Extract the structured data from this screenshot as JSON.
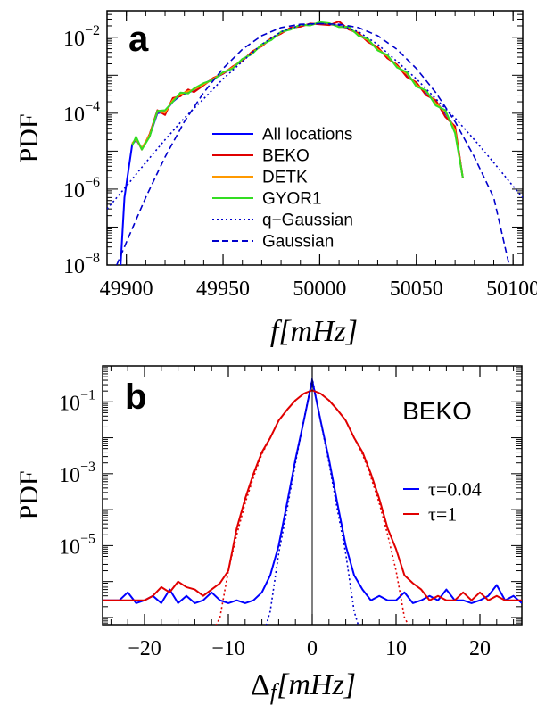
{
  "chart_data": [
    {
      "panel": "a",
      "type": "line",
      "xlabel_main": "f",
      "xlabel_unit": "[mHz]",
      "ylabel": "PDF",
      "xlim": [
        49890,
        50105
      ],
      "ylim_log10": [
        -8,
        -1.3
      ],
      "y_scale": "log",
      "grid": false,
      "legend_position": "center-right",
      "x_ticks": [
        49900,
        49950,
        50000,
        50050,
        50100
      ],
      "x_tick_labels": [
        "49900",
        "49950",
        "50000",
        "50050",
        "50100"
      ],
      "y_ticks_log10": [
        -8,
        -6,
        -4,
        -2
      ],
      "y_tick_bases": [
        "10",
        "10",
        "10",
        "10"
      ],
      "y_tick_exps": [
        "−8",
        "−6",
        "−4",
        "−2"
      ],
      "series": [
        {
          "name": "All locations",
          "color": "#0000ff",
          "dash": "solid",
          "x": [
            49897,
            49899,
            49903,
            49905,
            49908,
            49912,
            49916,
            49920,
            49924,
            49928,
            49932,
            49935,
            49940,
            49945,
            49950,
            49955,
            49960,
            49965,
            49970,
            49975,
            49980,
            49985,
            49990,
            49995,
            50000,
            50005,
            50010,
            50015,
            50020,
            50025,
            50030,
            50035,
            50040,
            50045,
            50050,
            50055,
            50060,
            50065,
            50070,
            50074
          ],
          "y": [
            1e-08,
            6e-07,
            1.5e-05,
            2e-05,
            1.2e-05,
            2.5e-05,
            0.0001,
            0.00011,
            0.0002,
            0.0003,
            0.00035,
            0.0004,
            0.0006,
            0.0008,
            0.0011,
            0.0016,
            0.0025,
            0.004,
            0.006,
            0.009,
            0.013,
            0.017,
            0.02,
            0.022,
            0.023,
            0.022,
            0.02,
            0.017,
            0.012,
            0.008,
            0.005,
            0.003,
            0.0018,
            0.001,
            0.0006,
            0.00035,
            0.0002,
            0.0001,
            4e-05,
            2e-06
          ]
        },
        {
          "name": "BEKO",
          "color": "#e00000",
          "dash": "solid",
          "x": [
            49903,
            49905,
            49908,
            49912,
            49916,
            49920,
            49924,
            49928,
            49932,
            49935,
            49940,
            49945,
            49950,
            49955,
            49960,
            49965,
            49970,
            49975,
            49980,
            49985,
            49990,
            49995,
            50000,
            50005,
            50010,
            50015,
            50020,
            50025,
            50030,
            50035,
            50040,
            50045,
            50050,
            50055,
            50060,
            50065,
            50070,
            50074
          ],
          "y": [
            1.5e-05,
            2.2e-05,
            1.1e-05,
            2.8e-05,
            0.00012,
            9e-05,
            0.00025,
            0.00028,
            0.00042,
            0.00036,
            0.00055,
            0.00085,
            0.0011,
            0.0017,
            0.0024,
            0.0042,
            0.0058,
            0.0095,
            0.0125,
            0.018,
            0.019,
            0.023,
            0.022,
            0.021,
            0.026,
            0.016,
            0.013,
            0.0075,
            0.0055,
            0.0028,
            0.0019,
            0.0009,
            0.00065,
            0.0003,
            0.00022,
            8e-05,
            4.5e-05,
            2e-06
          ]
        },
        {
          "name": "DETK",
          "color": "#ff9900",
          "dash": "solid",
          "x": [
            49903,
            49905,
            49908,
            49912,
            49916,
            49920,
            49924,
            49928,
            49932,
            49935,
            49940,
            49945,
            49950,
            49955,
            49960,
            49965,
            49970,
            49975,
            49980,
            49985,
            49990,
            49995,
            50000,
            50005,
            50010,
            50015,
            50020,
            50025,
            50030,
            50035,
            50040,
            50045,
            50050,
            50055,
            50060,
            50065,
            50070,
            50074
          ],
          "y": [
            1.6e-05,
            2.1e-05,
            1.2e-05,
            2.6e-05,
            0.00011,
            0.000105,
            0.00022,
            0.00032,
            0.00038,
            0.00042,
            0.00058,
            0.0008,
            0.00115,
            0.0016,
            0.0026,
            0.0038,
            0.0062,
            0.0088,
            0.0135,
            0.0165,
            0.021,
            0.021,
            0.024,
            0.023,
            0.019,
            0.018,
            0.0115,
            0.0085,
            0.0048,
            0.0032,
            0.0017,
            0.0011,
            0.00055,
            0.00038,
            0.00018,
            0.00011,
            3.5e-05,
            2e-06
          ]
        },
        {
          "name": "GYOR1",
          "color": "#33dd22",
          "dash": "solid",
          "x": [
            49903,
            49905,
            49908,
            49912,
            49916,
            49920,
            49924,
            49928,
            49932,
            49935,
            49940,
            49945,
            49950,
            49955,
            49960,
            49965,
            49970,
            49975,
            49980,
            49985,
            49990,
            49995,
            50000,
            50005,
            50010,
            50015,
            50020,
            50025,
            50030,
            50035,
            50040,
            50045,
            50050,
            50055,
            50060,
            50065,
            50070,
            50074
          ],
          "y": [
            1.4e-05,
            2.4e-05,
            1.1e-05,
            2.4e-05,
            0.000115,
            0.00012,
            0.0002,
            0.00035,
            0.00033,
            0.00045,
            0.00062,
            0.00075,
            0.0012,
            0.0015,
            0.0027,
            0.0036,
            0.0065,
            0.0085,
            0.014,
            0.016,
            0.0215,
            0.0205,
            0.025,
            0.0235,
            0.0185,
            0.019,
            0.011,
            0.009,
            0.0045,
            0.0034,
            0.0016,
            0.0012,
            0.0005,
            0.0004,
            0.00016,
            0.00012,
            3e-05,
            2e-06
          ]
        },
        {
          "name": "q−Gaussian",
          "color": "#0000cc",
          "dash": "dotted",
          "x": [
            49890,
            49900,
            49910,
            49920,
            49930,
            49940,
            49950,
            49960,
            49970,
            49980,
            49990,
            50000,
            50010,
            50020,
            50030,
            50040,
            50050,
            50060,
            50070,
            50080,
            50090,
            50100,
            50105
          ],
          "y": [
            3e-07,
            1.2e-06,
            5e-06,
            2e-05,
            7.5e-05,
            0.00024,
            0.0008,
            0.0023,
            0.0065,
            0.014,
            0.021,
            0.023,
            0.021,
            0.014,
            0.0065,
            0.0023,
            0.0008,
            0.00024,
            7.5e-05,
            2e-05,
            5e-06,
            1.2e-06,
            6e-07
          ]
        },
        {
          "name": "Gaussian",
          "color": "#0000cc",
          "dash": "dashed",
          "x": [
            49895,
            49900,
            49910,
            49920,
            49930,
            49940,
            49950,
            49960,
            49970,
            49980,
            49990,
            50000,
            50010,
            50020,
            50030,
            50040,
            50050,
            50060,
            50070,
            50080,
            50090,
            50098
          ],
          "y": [
            1e-08,
            4e-08,
            6e-07,
            7e-06,
            6e-05,
            0.00035,
            0.0015,
            0.0048,
            0.011,
            0.018,
            0.022,
            0.023,
            0.022,
            0.018,
            0.011,
            0.0048,
            0.0015,
            0.00035,
            6e-05,
            7e-06,
            6e-07,
            1e-08
          ]
        }
      ]
    },
    {
      "panel": "b",
      "type": "line",
      "xlabel_main": "Δ",
      "xlabel_sub": "f",
      "xlabel_unit": "[mHz]",
      "ylabel": "PDF",
      "xlim": [
        -25,
        25
      ],
      "ylim_log10": [
        -7.2,
        0
      ],
      "y_scale": "log",
      "grid": false,
      "annotation": "BEKO",
      "legend_position": "right",
      "x_ticks": [
        -20,
        -10,
        0,
        10,
        20
      ],
      "x_tick_labels": [
        "−20",
        "−10",
        "0",
        "10",
        "20"
      ],
      "y_ticks_log10": [
        -5,
        -3,
        -1
      ],
      "y_tick_bases": [
        "10",
        "10",
        "10"
      ],
      "y_tick_exps": [
        "−5",
        "−3",
        "−1"
      ],
      "series": [
        {
          "name": "τ=0.04",
          "color": "#0000ff",
          "dash": "solid",
          "x": [
            -25,
            -23,
            -22,
            -21,
            -20,
            -19,
            -18,
            -17,
            -16,
            -15,
            -14,
            -13,
            -12,
            -11,
            -10,
            -9,
            -8,
            -7,
            -6,
            -5,
            -4,
            -3,
            -2,
            -1,
            0,
            1,
            2,
            3,
            4,
            5,
            6,
            7,
            8,
            9,
            10,
            11,
            12,
            13,
            14,
            15,
            16,
            17,
            18,
            19,
            20,
            21,
            22,
            23,
            24,
            25
          ],
          "y": [
            3e-07,
            3e-07,
            5e-07,
            2.5e-07,
            3e-07,
            4e-07,
            2.5e-07,
            6e-07,
            2.5e-07,
            4e-07,
            2.5e-07,
            3e-07,
            5e-07,
            3e-07,
            2.5e-07,
            3e-07,
            2.5e-07,
            3e-07,
            5e-07,
            1.5e-06,
            1e-05,
            0.00015,
            0.0025,
            0.03,
            0.4,
            0.03,
            0.0025,
            0.00015,
            1e-05,
            1.5e-06,
            6e-07,
            3e-07,
            4e-07,
            3e-07,
            3e-07,
            5e-07,
            2.5e-07,
            3e-07,
            4e-07,
            3e-07,
            6e-07,
            3e-07,
            3e-07,
            2.5e-07,
            3e-07,
            4e-07,
            8e-07,
            3e-07,
            4e-07,
            2.5e-07
          ]
        },
        {
          "name": "τ=1",
          "color": "#e00000",
          "dash": "solid",
          "x": [
            -25,
            -23,
            -22,
            -21,
            -20,
            -19,
            -18,
            -17,
            -16,
            -15,
            -14,
            -13,
            -12,
            -11,
            -10,
            -9,
            -8,
            -7,
            -6,
            -5,
            -4,
            -3,
            -2,
            -1,
            0,
            1,
            2,
            3,
            4,
            5,
            6,
            7,
            8,
            9,
            10,
            11,
            12,
            13,
            14,
            15,
            16,
            17,
            18,
            19,
            20,
            21,
            22,
            23,
            24,
            25
          ],
          "y": [
            3e-07,
            3e-07,
            3e-07,
            3e-07,
            3e-07,
            4e-07,
            7e-07,
            5e-07,
            1e-06,
            7e-07,
            6e-07,
            4e-07,
            6e-07,
            9e-07,
            2e-06,
            3e-05,
            0.0002,
            0.001,
            0.004,
            0.01,
            0.03,
            0.06,
            0.11,
            0.17,
            0.21,
            0.17,
            0.11,
            0.06,
            0.03,
            0.01,
            0.004,
            0.001,
            0.0002,
            3e-05,
            8e-06,
            1.5e-06,
            9e-07,
            6e-07,
            3e-07,
            4e-07,
            3e-07,
            3e-07,
            5e-07,
            3e-07,
            5e-07,
            3e-07,
            4e-07,
            3e-07,
            3e-07,
            3e-07
          ]
        },
        {
          "name": "",
          "color": "#0000cc",
          "dash": "dotted",
          "x": [
            -5.5,
            -5,
            -4,
            -3,
            -2,
            -1,
            0,
            1,
            2,
            3,
            4,
            5,
            5.5
          ],
          "y": [
            6e-08,
            1.5e-07,
            6e-06,
            0.0001,
            0.002,
            0.03,
            0.45,
            0.03,
            0.002,
            0.0001,
            6e-06,
            1.5e-07,
            6e-08
          ]
        },
        {
          "name": "",
          "color": "#e00000",
          "dash": "dotted",
          "x": [
            -11.5,
            -11,
            -10,
            -9,
            -8,
            -7,
            -6,
            -5,
            -4,
            -3,
            -2,
            -1,
            0,
            1,
            2,
            3,
            4,
            5,
            6,
            7,
            8,
            9,
            10,
            11,
            11.5
          ],
          "y": [
            6e-08,
            1e-07,
            2e-06,
            2e-05,
            0.00015,
            0.0008,
            0.0035,
            0.01,
            0.03,
            0.06,
            0.11,
            0.17,
            0.21,
            0.17,
            0.11,
            0.06,
            0.03,
            0.01,
            0.0035,
            0.0008,
            0.00015,
            2e-05,
            2e-06,
            1e-07,
            6e-08
          ]
        }
      ]
    }
  ],
  "colors": {
    "axes": "#000000",
    "background": "#ffffff"
  }
}
